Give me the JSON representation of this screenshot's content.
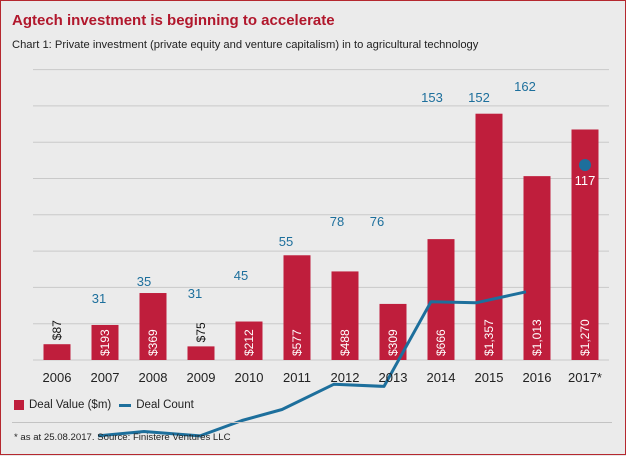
{
  "title": "Agtech investment is beginning to accelerate",
  "subtitle": "Chart 1: Private investment (private equity and venture capitalism) in to agricultural technology",
  "legend": {
    "bar_label": "Deal Value ($m)",
    "line_label": "Deal Count"
  },
  "footnote": "* as at 25.08.2017.  Source: Finistere Ventures LLC",
  "colors": {
    "bar": "#bf1e3c",
    "line": "#1d6f9c",
    "title": "#b1172c",
    "grid": "#c9c9c9"
  },
  "chart_data": {
    "type": "bar",
    "title": "Agtech investment is beginning to accelerate",
    "categories": [
      "2006",
      "2007",
      "2008",
      "2009",
      "2010",
      "2011",
      "2012",
      "2013",
      "2014",
      "2015",
      "2016",
      "2017*"
    ],
    "series": [
      {
        "name": "Deal Value ($m)",
        "type": "bar",
        "values": [
          87,
          193,
          369,
          75,
          212,
          577,
          488,
          309,
          666,
          1357,
          1013,
          1270
        ],
        "labels": [
          "$87",
          "$193",
          "$369",
          "$75",
          "$212",
          "$577",
          "$488",
          "$309",
          "$666",
          "$1,357",
          "$1,013",
          "$1,270"
        ]
      },
      {
        "name": "Deal Count",
        "type": "line",
        "values": [
          null,
          31,
          35,
          31,
          45,
          55,
          78,
          76,
          153,
          152,
          162,
          117
        ],
        "labels": [
          "",
          "31",
          "35",
          "31",
          "45",
          "55",
          "78",
          "76",
          "153",
          "152",
          "162",
          "117"
        ]
      }
    ],
    "grid": true,
    "legend_position": "bottom-left"
  }
}
